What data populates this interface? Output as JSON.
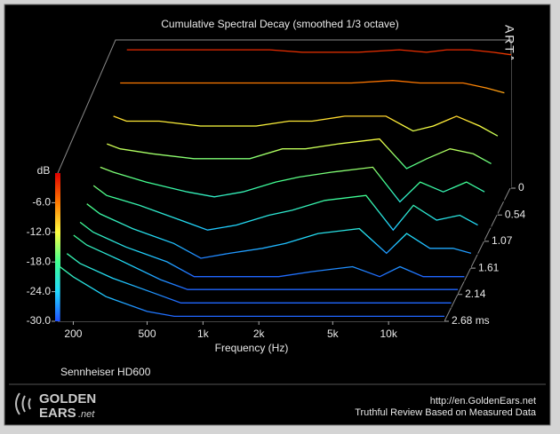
{
  "chart_data": {
    "type": "waterfall",
    "title": "Cumulative Spectral Decay (smoothed 1/3 octave)",
    "x_label": "Frequency (Hz)",
    "colorbar_label": "dB",
    "brand": "ARTA",
    "annotation": "Sennheiser HD600",
    "log_x": true,
    "xlim": [
      165,
      20000
    ],
    "xticks": [
      200,
      500,
      {
        "value": 1000,
        "label": "1k"
      },
      {
        "value": 2000,
        "label": "2k"
      },
      {
        "value": 5000,
        "label": "5k"
      },
      {
        "value": 10000,
        "label": "10k"
      }
    ],
    "ylim": [
      -30,
      0
    ],
    "yticks": [
      {
        "value": -6,
        "label": "-6.0"
      },
      {
        "value": -12,
        "label": "-12.0"
      },
      {
        "value": -18,
        "label": "-18.0"
      },
      {
        "value": -24,
        "label": "-24.0"
      },
      {
        "value": -30,
        "label": "-30.0"
      }
    ],
    "tlim": [
      0,
      2.68
    ],
    "tticks": [
      0,
      0.54,
      1.07,
      1.61,
      2.14,
      {
        "value": 2.68,
        "label": "2.68 ms"
      }
    ],
    "colormap": [
      "#e00000",
      "#ff7a00",
      "#ffff40",
      "#40ff90",
      "#20d8ff",
      "#2050ff"
    ],
    "x": [
      170,
      200,
      300,
      500,
      700,
      1000,
      1500,
      2000,
      3000,
      5000,
      7000,
      9000,
      12000,
      16000,
      20000
    ],
    "slices": [
      {
        "time": 0,
        "values": [
          -2,
          -2,
          -2,
          -2,
          -2,
          -2,
          -2.5,
          -2.5,
          -2.5,
          -2,
          -2.5,
          -2,
          -2,
          -2.5,
          -3
        ]
      },
      {
        "time": 0.27,
        "values": [
          -6,
          -6,
          -6,
          -6,
          -6,
          -6,
          -6,
          -6,
          -6,
          -5.5,
          -6,
          -6,
          -6,
          -7,
          -8
        ]
      },
      {
        "time": 0.54,
        "values": [
          -10,
          -11,
          -11,
          -12,
          -12,
          -12,
          -11,
          -11,
          -10,
          -10,
          -13,
          -12,
          -10,
          -12,
          -14
        ]
      },
      {
        "time": 0.8,
        "values": [
          -13,
          -14,
          -15,
          -16,
          -16,
          -16,
          -14,
          -14,
          -13,
          -12,
          -18,
          -16,
          -14,
          -15,
          -17
        ]
      },
      {
        "time": 1.07,
        "values": [
          -15,
          -16,
          -18,
          -20,
          -21,
          -20,
          -18,
          -17,
          -16,
          -15,
          -22,
          -18,
          -20,
          -18,
          -20
        ]
      },
      {
        "time": 1.34,
        "values": [
          -16,
          -18,
          -20,
          -23,
          -25,
          -24,
          -22,
          -21,
          -19,
          -18,
          -25,
          -20,
          -23,
          -22,
          -24
        ]
      },
      {
        "time": 1.61,
        "values": [
          -17,
          -19,
          -22,
          -25,
          -28,
          -27,
          -26,
          -25,
          -23,
          -22,
          -27,
          -23,
          -26,
          -26,
          -27
        ]
      },
      {
        "time": 1.88,
        "values": [
          -18,
          -20,
          -23,
          -26,
          -29,
          -29,
          -29,
          -29,
          -28,
          -27,
          -29,
          -27,
          -29,
          -29,
          -29
        ]
      },
      {
        "time": 2.14,
        "values": [
          -18,
          -20,
          -23,
          -27,
          -29,
          -29,
          -29,
          -29,
          -29,
          -29,
          -29,
          -29,
          -29,
          -29,
          -29
        ]
      },
      {
        "time": 2.41,
        "values": [
          -19,
          -21,
          -24,
          -27,
          -29,
          -29,
          -29,
          -29,
          -29,
          -29,
          -29,
          -29,
          -29,
          -29,
          -29
        ]
      },
      {
        "time": 2.68,
        "values": [
          -19,
          -21,
          -25,
          -28,
          -29,
          -29,
          -29,
          -29,
          -29,
          -29,
          -29,
          -29,
          -29,
          -29,
          -29
        ]
      }
    ]
  },
  "footer": {
    "logo_top": "GOLDEN",
    "logo_bottom": "EARS",
    "logo_suffix": ".net",
    "url": "http://en.GoldenEars.net",
    "tagline": "Truthful Review Based on Measured Data"
  }
}
